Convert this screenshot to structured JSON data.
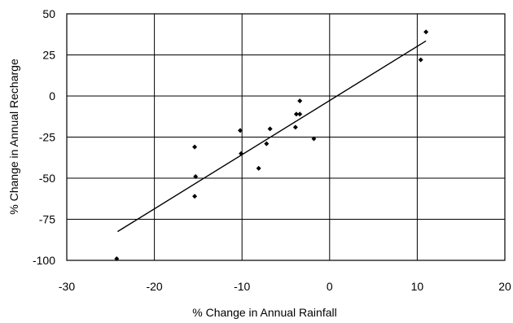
{
  "chart_data": {
    "type": "scatter",
    "title": "",
    "xlabel": "% Change in Annual Rainfall",
    "ylabel": "% Change in Annual Recharge",
    "xlim": [
      -30,
      20
    ],
    "ylim": [
      -100,
      50
    ],
    "x_ticks": [
      -30,
      -20,
      -10,
      0,
      10,
      20
    ],
    "y_ticks": [
      -100,
      -75,
      -50,
      -25,
      0,
      25,
      50
    ],
    "x_tick_labels": [
      "-30",
      "-20",
      "-10",
      "0",
      "10",
      "20"
    ],
    "y_tick_labels": [
      "-100",
      "-75",
      "-50",
      "-25",
      "0",
      "25",
      "50"
    ],
    "grid": true,
    "legend": "none",
    "series": [
      {
        "points": [
          {
            "x": -24.3,
            "y": -99
          },
          {
            "x": -15.4,
            "y": -31
          },
          {
            "x": -15.3,
            "y": -49
          },
          {
            "x": -15.4,
            "y": -61
          },
          {
            "x": -10.2,
            "y": -21
          },
          {
            "x": -10.1,
            "y": -35
          },
          {
            "x": -8.1,
            "y": -44
          },
          {
            "x": -7.2,
            "y": -29
          },
          {
            "x": -6.8,
            "y": -20
          },
          {
            "x": -3.9,
            "y": -19
          },
          {
            "x": -3.8,
            "y": -11
          },
          {
            "x": -3.4,
            "y": -11
          },
          {
            "x": -3.4,
            "y": -3
          },
          {
            "x": -1.8,
            "y": -26
          },
          {
            "x": 10.4,
            "y": 22
          },
          {
            "x": 11.0,
            "y": 39
          }
        ]
      }
    ],
    "trendline": {
      "x": [
        -24.2,
        11.0
      ],
      "y": [
        -82.5,
        33.5
      ]
    },
    "colors": {
      "points": "#000000",
      "trendline": "#000000",
      "grid": "#000000",
      "background": "#ffffff"
    }
  }
}
